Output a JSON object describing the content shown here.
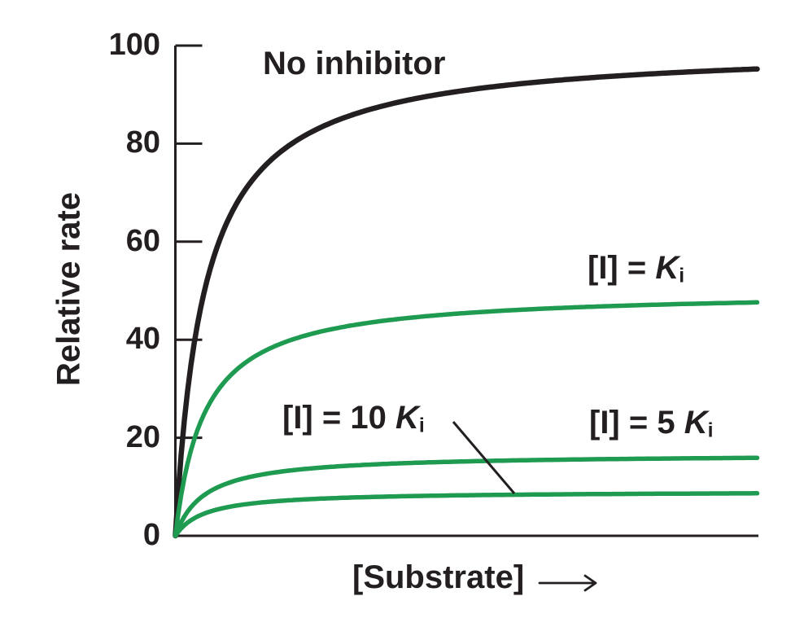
{
  "chart_data": {
    "type": "line",
    "title": "",
    "xlabel": "[Substrate]",
    "ylabel": "Relative rate",
    "ylim": [
      0,
      100
    ],
    "yticks": [
      0,
      20,
      40,
      60,
      80,
      100
    ],
    "x_tick_labels": [],
    "grid": false,
    "axis_color": "#231f20",
    "accent_green": "#1e9b50",
    "model": "michaelis_menten",
    "km_fraction_of_x_range": 0.05,
    "series": [
      {
        "name": "No inhibitor",
        "color": "#231f20",
        "vmax": 100,
        "value_at_right_edge": 95
      },
      {
        "name": "[I] = Ki",
        "color": "#1e9b50",
        "vmax": 50,
        "value_at_right_edge": 48
      },
      {
        "name": "[I] = 5 Ki",
        "color": "#1e9b50",
        "vmax": 16.7,
        "value_at_right_edge": 16
      },
      {
        "name": "[I] = 10 Ki",
        "color": "#1e9b50",
        "vmax": 9.1,
        "value_at_right_edge": 9
      }
    ],
    "annotations": {
      "no_inhibitor": {
        "text": "No inhibitor"
      },
      "ki": {
        "prefix": "[I] = ",
        "symbol": "K",
        "subscript": "i"
      },
      "ki10": {
        "prefix": "[I] = 10 ",
        "symbol": "K",
        "subscript": "i"
      },
      "ki5": {
        "prefix": "[I] = 5 ",
        "symbol": "K",
        "subscript": "i"
      }
    }
  }
}
